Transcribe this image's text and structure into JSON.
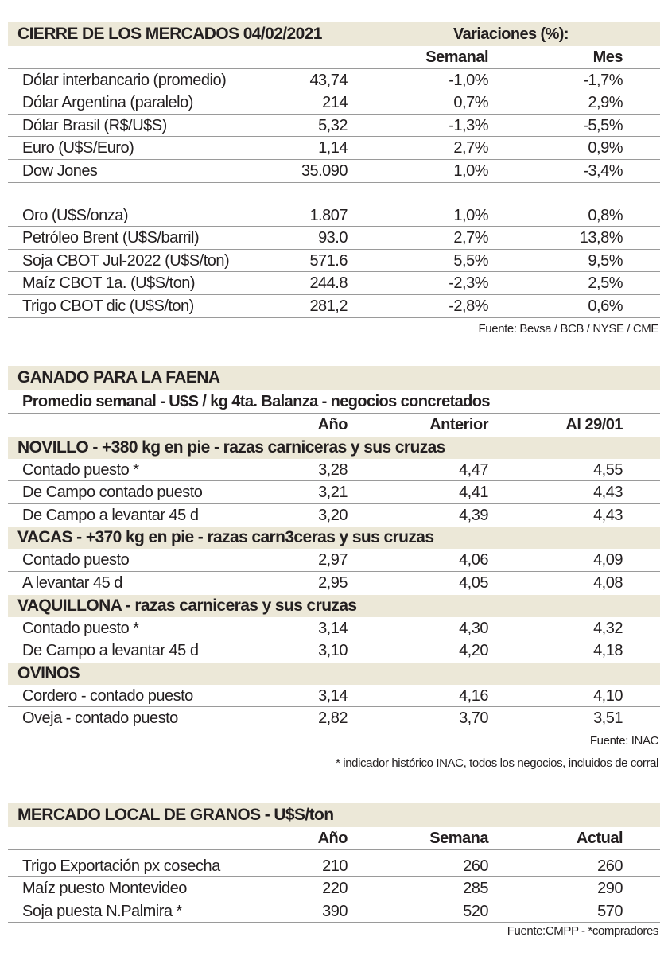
{
  "mercados": {
    "title": "CIERRE DE LOS MERCADOS 04/02/2021",
    "variaciones": "Variaciones (%):",
    "columns": [
      "",
      "Semanal",
      "Mes"
    ],
    "rows_a": [
      [
        "Dólar interbancario (promedio)",
        "43,74",
        "-1,0%",
        "-1,7%"
      ],
      [
        "Dólar Argentina (paralelo)",
        "214",
        "0,7%",
        "2,9%"
      ],
      [
        "Dólar Brasil (R$/U$S)",
        "5,32",
        "-1,3%",
        "-5,5%"
      ],
      [
        "Euro (U$S/Euro)",
        "1,14",
        "2,7%",
        "0,9%"
      ],
      [
        "Dow Jones",
        "35.090",
        "1,0%",
        "-3,4%"
      ]
    ],
    "rows_b": [
      [
        "Oro (U$S/onza)",
        "1.807",
        "1,0%",
        "0,8%"
      ],
      [
        "Petróleo Brent (U$S/barril)",
        "93.0",
        "2,7%",
        "13,8%"
      ],
      [
        "Soja CBOT Jul-2022 (U$S/ton)",
        "571.6",
        "5,5%",
        "9,5%"
      ],
      [
        "Maíz CBOT 1a. (U$S/ton)",
        "244.8",
        "-2,3%",
        "2,5%"
      ],
      [
        "Trigo CBOT dic (U$S/ton)",
        "281,2",
        "-2,8%",
        "0,6%"
      ]
    ],
    "source": "Fuente: Bevsa / BCB / NYSE / CME"
  },
  "ganado": {
    "title": "GANADO PARA LA FAENA",
    "subtitle": "Promedio semanal - U$S / kg 4ta. Balanza - negocios concretados",
    "columns": [
      "Año",
      "Anterior",
      "Al 29/01"
    ],
    "groups": [
      {
        "title": "NOVILLO - +380 kg en pie - razas carniceras y sus cruzas",
        "rows": [
          [
            "Contado puesto *",
            "3,28",
            "4,47",
            "4,55"
          ],
          [
            "De Campo contado puesto",
            "3,21",
            "4,41",
            "4,43"
          ],
          [
            "De Campo a levantar 45 d",
            "3,20",
            "4,39",
            "4,43"
          ]
        ]
      },
      {
        "title": "VACAS - +370 kg en pie - razas carn3ceras y sus cruzas",
        "rows": [
          [
            "Contado puesto",
            "2,97",
            "4,06",
            "4,09"
          ],
          [
            "A levantar 45 d",
            "2,95",
            "4,05",
            "4,08"
          ]
        ]
      },
      {
        "title": "VAQUILLONA - razas carniceras y sus cruzas",
        "rows": [
          [
            "Contado puesto *",
            "3,14",
            "4,30",
            "4,32"
          ],
          [
            "De Campo a levantar 45 d",
            "3,10",
            "4,20",
            "4,18"
          ]
        ]
      },
      {
        "title": "OVINOS",
        "rows": [
          [
            "Cordero - contado puesto",
            "3,14",
            "4,16",
            "4,10"
          ],
          [
            "Oveja - contado puesto",
            "2,82",
            "3,70",
            "3,51"
          ]
        ]
      }
    ],
    "source": "Fuente: INAC",
    "footnote": "* indicador histórico INAC, todos los negocios, incluidos de corral"
  },
  "granos": {
    "title": "MERCADO LOCAL DE GRANOS - U$S/ton",
    "columns": [
      "Año",
      "Semana",
      "Actual"
    ],
    "rows": [
      [
        "Trigo Exportación px cosecha",
        "210",
        "260",
        "260"
      ],
      [
        "Maíz puesto Montevideo",
        "220",
        "285",
        "290"
      ],
      [
        "Soja puesta N.Palmira *",
        "390",
        "520",
        "570"
      ]
    ],
    "source": "Fuente:CMPP - *compradores"
  }
}
